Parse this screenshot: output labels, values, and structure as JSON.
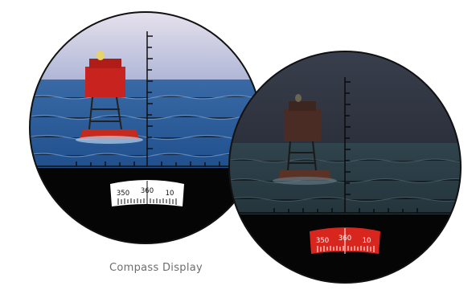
{
  "caption": "Compass Display",
  "day_view": {
    "compass": {
      "left": "350",
      "center": "360",
      "right": "10"
    },
    "colors": {
      "sky": "#bfc3dc",
      "sea": "#2e5f9a",
      "buoy": "#c8231e",
      "scale_bg": "#ffffff",
      "scale_fg": "#111111"
    }
  },
  "night_view": {
    "compass": {
      "left": "350",
      "center": "360",
      "right": "10"
    },
    "colors": {
      "sky": "#323744",
      "sea": "#2b3d46",
      "buoy": "#5a2a22",
      "scale_bg": "#d8261f",
      "scale_fg": "#ffffff"
    }
  },
  "icons": [
    "buoy-icon",
    "reticle-icon",
    "compass-scale-icon"
  ]
}
